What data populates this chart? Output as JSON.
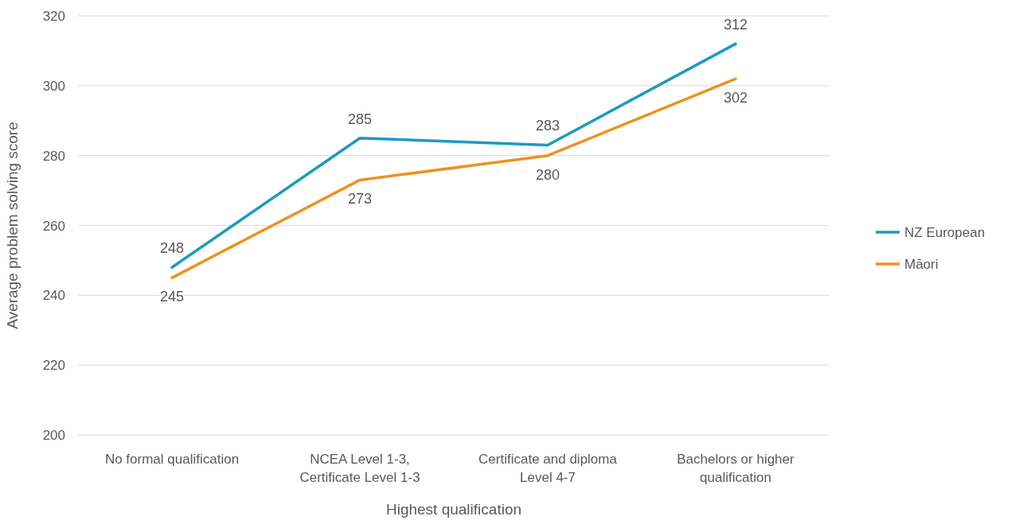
{
  "chart_data": {
    "type": "line",
    "xlabel": "Highest qualification",
    "ylabel": "Average problem solving score",
    "categories": [
      "No formal qualification",
      "NCEA Level 1-3, Certificate Level 1-3",
      "Certificate and diploma Level 4-7",
      "Bachelors or higher qualification"
    ],
    "series": [
      {
        "name": "NZ European",
        "color": "#1c9ac0",
        "values": [
          248,
          285,
          283,
          312
        ]
      },
      {
        "name": "Māori",
        "color": "#ee9220",
        "values": [
          245,
          273,
          280,
          302
        ]
      }
    ],
    "ylim": [
      200,
      320
    ],
    "yticks": [
      200,
      220,
      240,
      260,
      280,
      300,
      320
    ],
    "grid": "y",
    "legend": "right",
    "data_labels": true,
    "marker": "none",
    "line_style": "solid"
  }
}
